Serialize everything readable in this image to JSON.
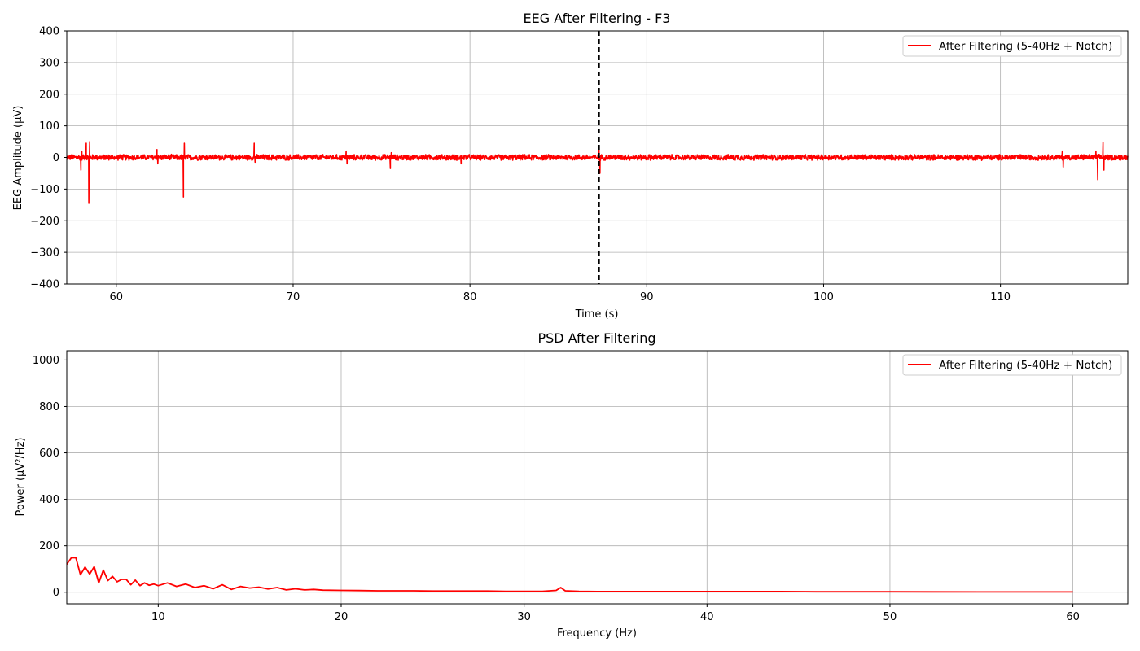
{
  "chart_data": [
    {
      "type": "line",
      "title": "EEG After Filtering - F3",
      "xlabel": "Time (s)",
      "ylabel": "EEG Amplitude (µV)",
      "xlim": [
        57.2,
        117.2
      ],
      "ylim": [
        -400,
        400
      ],
      "xticks": [
        60,
        70,
        80,
        90,
        100,
        110
      ],
      "xtick_labels": [
        "60",
        "70",
        "80",
        "90",
        "100",
        "110"
      ],
      "yticks": [
        -400,
        -300,
        -200,
        -100,
        0,
        100,
        200,
        300,
        400
      ],
      "ytick_labels": [
        "−400",
        "−300",
        "−200",
        "−100",
        "0",
        "100",
        "200",
        "300",
        "400"
      ],
      "grid": true,
      "legend": "upper right",
      "color": "#ff0000",
      "marker_color": "#000000",
      "noise_amplitude": 10,
      "series": [
        {
          "name": "After Filtering (5-40Hz + Notch)",
          "spikes": [
            {
              "x": 58.0,
              "y": -40
            },
            {
              "x": 58.05,
              "y": 20
            },
            {
              "x": 58.3,
              "y": 45
            },
            {
              "x": 58.45,
              "y": -145
            },
            {
              "x": 58.5,
              "y": 50
            },
            {
              "x": 62.3,
              "y": 25
            },
            {
              "x": 62.35,
              "y": -20
            },
            {
              "x": 63.8,
              "y": -125
            },
            {
              "x": 63.85,
              "y": 45
            },
            {
              "x": 67.8,
              "y": 45
            },
            {
              "x": 67.85,
              "y": -15
            },
            {
              "x": 73.0,
              "y": 20
            },
            {
              "x": 73.05,
              "y": -20
            },
            {
              "x": 75.5,
              "y": -35
            },
            {
              "x": 75.55,
              "y": 15
            },
            {
              "x": 79.5,
              "y": -20
            },
            {
              "x": 87.3,
              "y": 25
            },
            {
              "x": 87.35,
              "y": -50
            },
            {
              "x": 113.5,
              "y": 20
            },
            {
              "x": 113.55,
              "y": -30
            },
            {
              "x": 115.4,
              "y": 20
            },
            {
              "x": 115.5,
              "y": -70
            },
            {
              "x": 115.8,
              "y": 48
            },
            {
              "x": 115.85,
              "y": -40
            }
          ]
        }
      ],
      "vline": 87.3
    },
    {
      "type": "line",
      "title": "PSD After Filtering",
      "xlabel": "Frequency (Hz)",
      "ylabel": "Power (µV²/Hz)",
      "xlim": [
        5,
        63
      ],
      "ylim": [
        -50,
        1040
      ],
      "xticks": [
        10,
        20,
        30,
        40,
        50,
        60
      ],
      "xtick_labels": [
        "10",
        "20",
        "30",
        "40",
        "50",
        "60"
      ],
      "yticks": [
        0,
        200,
        400,
        600,
        800,
        1000
      ],
      "ytick_labels": [
        "0",
        "200",
        "400",
        "600",
        "800",
        "1000"
      ],
      "grid": true,
      "legend": "upper right",
      "color": "#ff0000",
      "series": [
        {
          "name": "After Filtering (5-40Hz + Notch)",
          "x": [
            5.0,
            5.25,
            5.5,
            5.75,
            6.0,
            6.25,
            6.5,
            6.75,
            7.0,
            7.25,
            7.5,
            7.75,
            8.0,
            8.25,
            8.5,
            8.75,
            9.0,
            9.25,
            9.5,
            9.75,
            10.0,
            10.5,
            11.0,
            11.5,
            12.0,
            12.5,
            13.0,
            13.5,
            14.0,
            14.5,
            15.0,
            15.5,
            16.0,
            16.5,
            17.0,
            17.5,
            18.0,
            18.5,
            19.0,
            20.0,
            21.0,
            22.0,
            23.0,
            24.0,
            25.0,
            26.0,
            27.0,
            28.0,
            29.0,
            30.0,
            31.0,
            31.75,
            32.0,
            32.25,
            33.0,
            34.0,
            35.0,
            36.0,
            38.0,
            40.0,
            42.0,
            44.0,
            46.0,
            48.0,
            50.0,
            55.0,
            60.0
          ],
          "y": [
            120,
            148,
            148,
            75,
            108,
            78,
            110,
            40,
            95,
            50,
            68,
            45,
            55,
            55,
            32,
            52,
            28,
            40,
            30,
            35,
            28,
            40,
            25,
            35,
            20,
            28,
            15,
            32,
            12,
            25,
            18,
            22,
            14,
            20,
            10,
            15,
            10,
            12,
            9,
            8,
            7,
            6,
            6,
            6,
            5,
            5,
            5,
            5,
            4,
            4,
            4,
            8,
            20,
            6,
            4,
            3,
            3,
            3,
            3,
            3,
            3,
            3,
            2,
            2,
            2,
            1,
            1
          ]
        }
      ]
    }
  ]
}
